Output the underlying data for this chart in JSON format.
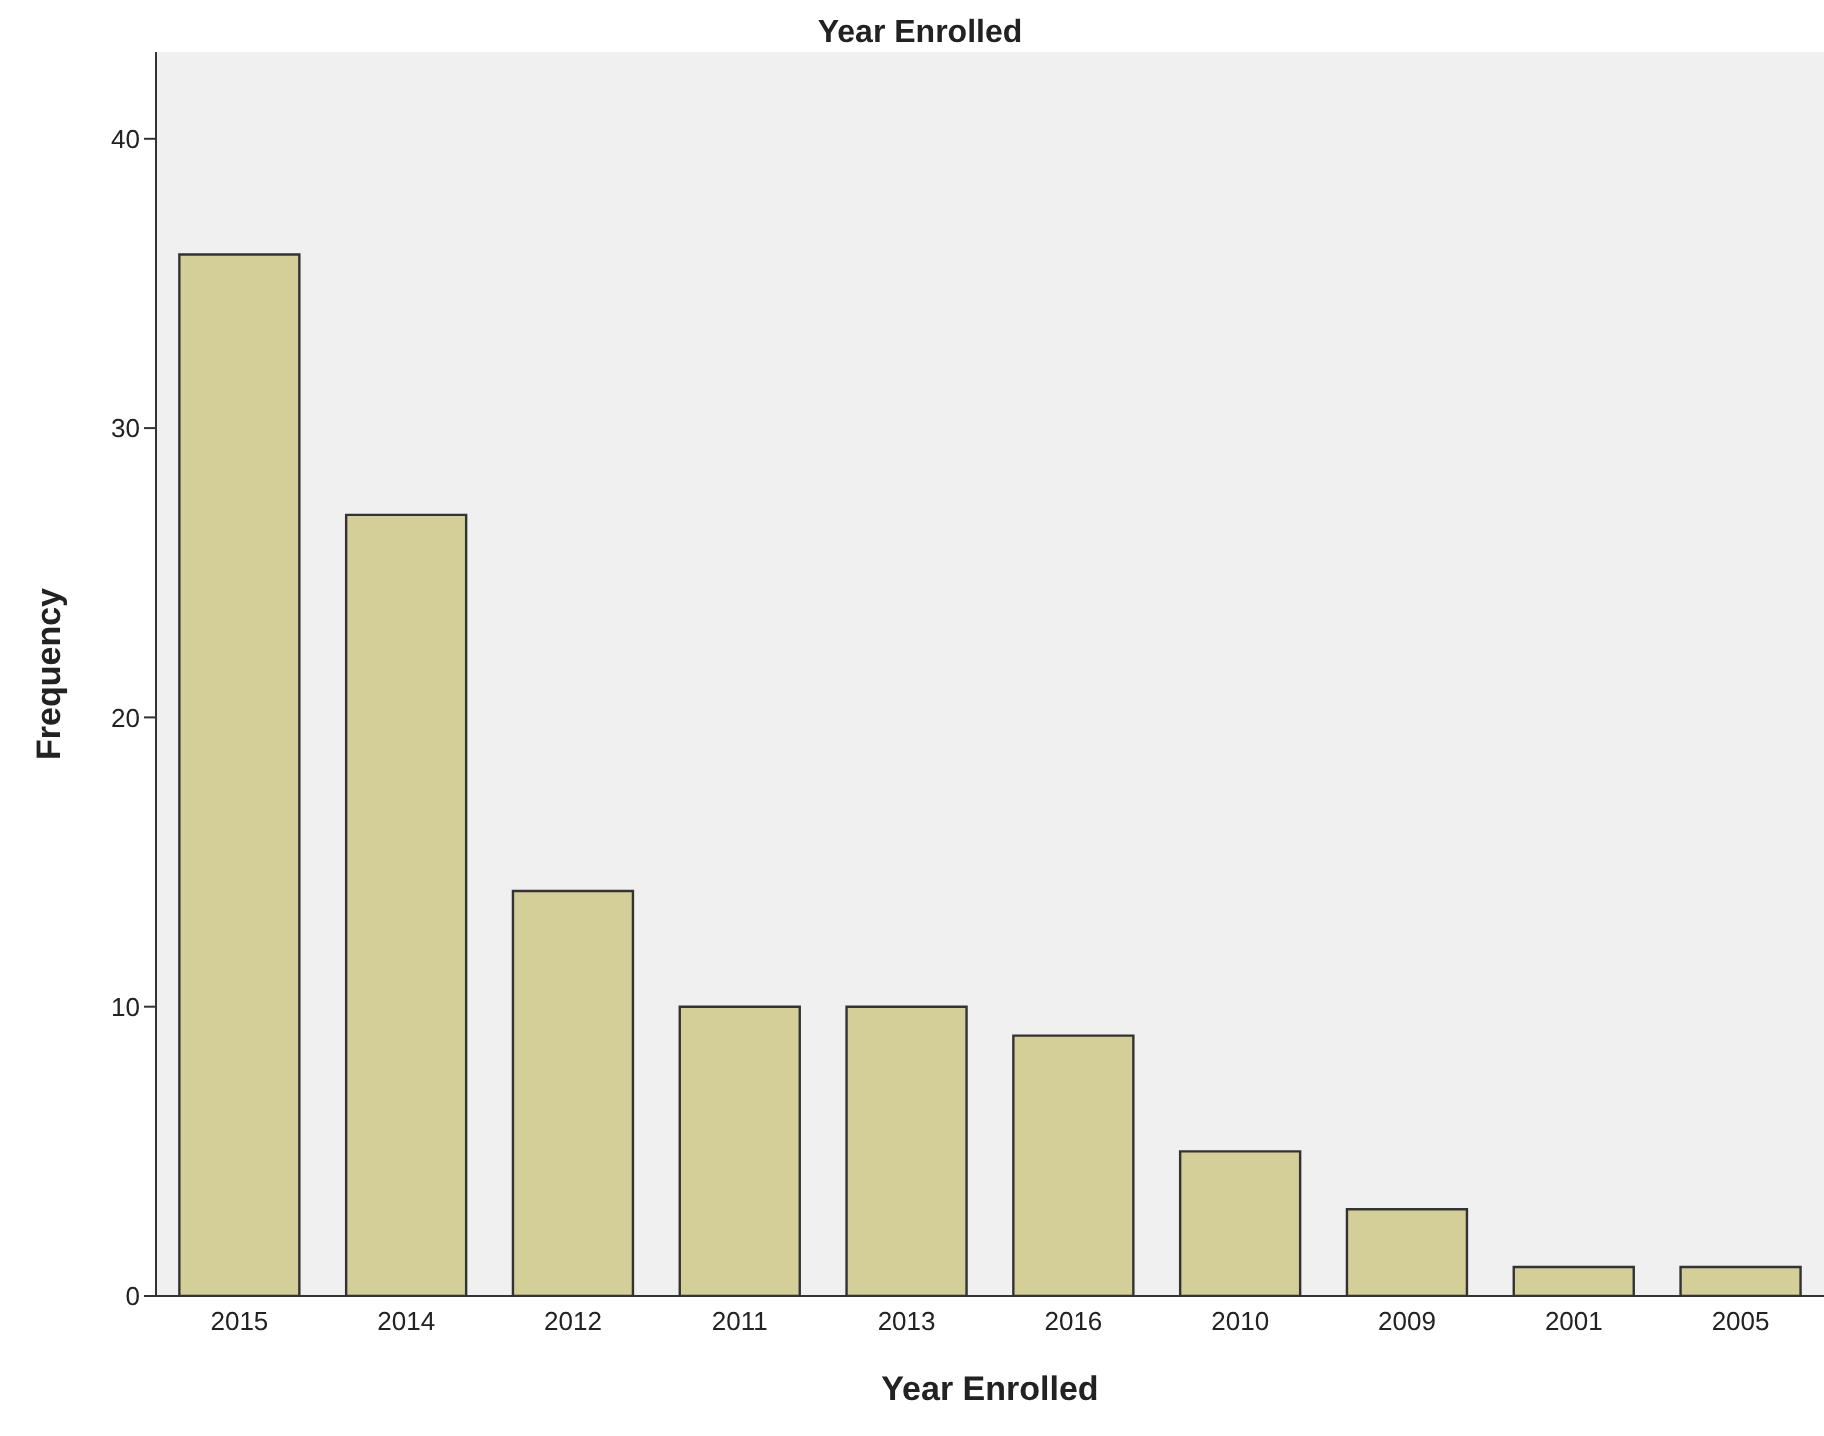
{
  "chart_data": {
    "type": "bar",
    "title": "Year Enrolled",
    "xlabel": "Year Enrolled",
    "ylabel": "Frequency",
    "categories": [
      "2015",
      "2014",
      "2012",
      "2011",
      "2013",
      "2016",
      "2010",
      "2009",
      "2001",
      "2005"
    ],
    "values": [
      36,
      27,
      14,
      10,
      10,
      9,
      5,
      3,
      1,
      1
    ],
    "color": "#d4ce98",
    "ylim": [
      0,
      43
    ],
    "yticks": [
      0,
      10,
      20,
      30,
      40
    ],
    "grid": false
  }
}
